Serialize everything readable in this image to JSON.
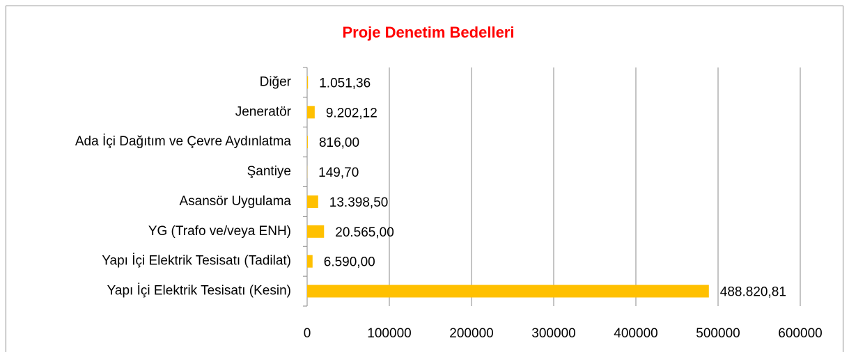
{
  "chart_data": {
    "type": "bar",
    "orientation": "horizontal",
    "title": "Proje Denetim Bedelleri",
    "categories": [
      "Diğer",
      "Jeneratör",
      "Ada İçi Dağıtım ve Çevre Aydınlatma",
      "Şantiye",
      "Asansör Uygulama",
      "YG (Trafo ve/veya ENH)",
      "Yapı İçi Elektrik Tesisatı (Tadilat)",
      "Yapı İçi Elektrik Tesisatı (Kesin)"
    ],
    "values": [
      1051.36,
      9202.12,
      816,
      149.7,
      13398.5,
      20565,
      6590,
      488820.81
    ],
    "value_labels": [
      "1.051,36",
      "9.202,12",
      "816,00",
      "149,70",
      "13.398,50",
      "20.565,00",
      "6.590,00",
      "488.820,81"
    ],
    "color": "#ffc000",
    "xlim": [
      0,
      600000
    ],
    "xticks": [
      0,
      100000,
      200000,
      300000,
      400000,
      500000,
      600000
    ],
    "grid": true
  }
}
